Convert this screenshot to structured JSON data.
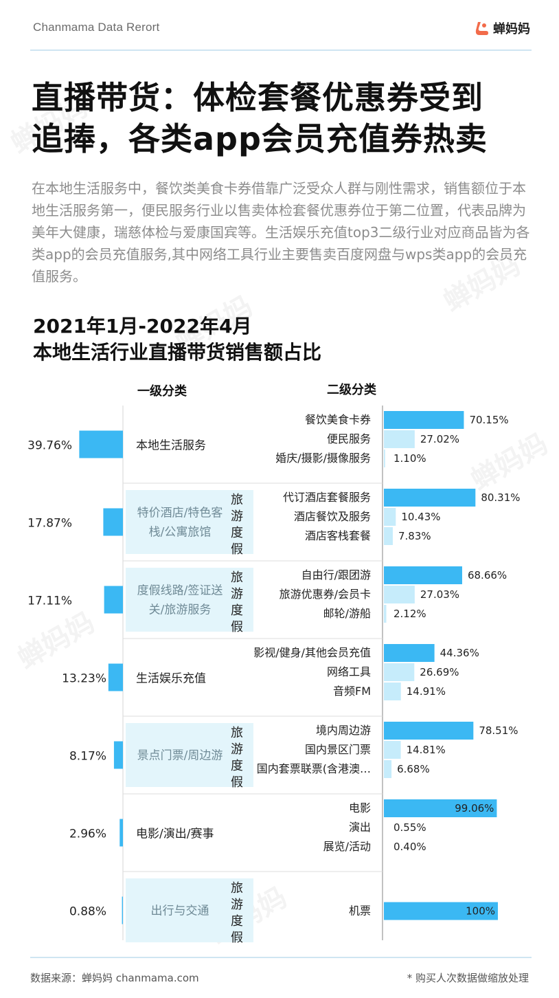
{
  "header": {
    "brand_text": "Chanmama Data Rerort",
    "logo_text": "蝉妈妈"
  },
  "headline": {
    "line1": "直播带货：体检套餐优惠券受到",
    "line2": "追捧，各类app会员充值券热卖"
  },
  "intro": "在本地生活服务中，餐饮类美食卡券借靠广泛受众人群与刚性需求，销售额位于本地生活服务第一，便民服务行业以售卖体检套餐优惠券位于第二位置，代表品牌为美年大健康，瑞慈体检与爱康国宾等。生活娱乐充值top3二级行业对应商品皆为各类app的会员充值服务,其中网络工具行业主要售卖百度网盘与wps类app的会员充值服务。",
  "chart_title": {
    "line1": "2021年1月-2022年4月",
    "line2": "本地生活行业直播带货销售额占比"
  },
  "chart_data": {
    "type": "bar",
    "level1_header": "一级分类",
    "level2_header": "二级分类",
    "colors": {
      "primary": "#3bb8f3",
      "secondary": "#c6ecfb",
      "travel_box": "#e3f5fb"
    },
    "travel_tag": "旅游度假",
    "groups": [
      {
        "name": "本地生活服务",
        "share": "39.76%",
        "value": 39.76,
        "travel": false,
        "subs": [
          {
            "name": "餐饮美食卡券",
            "label": "70.15%",
            "value": 70.15
          },
          {
            "name": "便民服务",
            "label": "27.02%",
            "value": 27.02
          },
          {
            "name": "婚庆/摄影/摄像服务",
            "label": "1.10%",
            "value": 1.1
          }
        ]
      },
      {
        "name": "特价酒店/特色客栈/公寓旅馆",
        "name_lines": [
          "特价酒店/特色客",
          "栈/公寓旅馆"
        ],
        "share": "17.87%",
        "value": 17.87,
        "travel": true,
        "subs": [
          {
            "name": "代订酒店套餐服务",
            "label": "80.31%",
            "value": 80.31
          },
          {
            "name": "酒店餐饮及服务",
            "label": "10.43%",
            "value": 10.43
          },
          {
            "name": "酒店客栈套餐",
            "label": "7.83%",
            "value": 7.83
          }
        ]
      },
      {
        "name": "度假线路/签证送关/旅游服务",
        "name_lines": [
          "度假线路/签证送",
          "关/旅游服务"
        ],
        "share": "17.11%",
        "value": 17.11,
        "travel": true,
        "subs": [
          {
            "name": "自由行/跟团游",
            "label": "68.66%",
            "value": 68.66
          },
          {
            "name": "旅游优惠券/会员卡",
            "label": "27.03%",
            "value": 27.03
          },
          {
            "name": "邮轮/游船",
            "label": "2.12%",
            "value": 2.12
          }
        ]
      },
      {
        "name": "生活娱乐充值",
        "share": "13.23%",
        "value": 13.23,
        "travel": false,
        "subs": [
          {
            "name": "影视/健身/其他会员充值",
            "label": "44.36%",
            "value": 44.36
          },
          {
            "name": "网络工具",
            "label": "26.69%",
            "value": 26.69
          },
          {
            "name": "音频FM",
            "label": "14.91%",
            "value": 14.91
          }
        ]
      },
      {
        "name": "景点门票/周边游",
        "share": "8.17%",
        "value": 8.17,
        "travel": true,
        "subs": [
          {
            "name": "境内周边游",
            "label": "78.51%",
            "value": 78.51
          },
          {
            "name": "国内景区门票",
            "label": "14.81%",
            "value": 14.81
          },
          {
            "name": "国内套票联票(含港澳…",
            "label": "6.68%",
            "value": 6.68
          }
        ]
      },
      {
        "name": "电影/演出/赛事",
        "share": "2.96%",
        "value": 2.96,
        "travel": false,
        "subs": [
          {
            "name": "电影",
            "label": "99.06%",
            "value": 99.06
          },
          {
            "name": "演出",
            "label": "0.55%",
            "value": 0.55
          },
          {
            "name": "展览/活动",
            "label": "0.40%",
            "value": 0.4
          }
        ]
      },
      {
        "name": "出行与交通",
        "share": "0.88%",
        "value": 0.88,
        "travel": true,
        "subs": [
          {
            "name": "机票",
            "label": "100%",
            "value": 100
          }
        ]
      }
    ]
  },
  "footer": {
    "source": "数据来源：蝉妈妈 chanmama.com",
    "note": "* 购买人次数据做缩放处理"
  },
  "watermark": "蝉妈妈"
}
